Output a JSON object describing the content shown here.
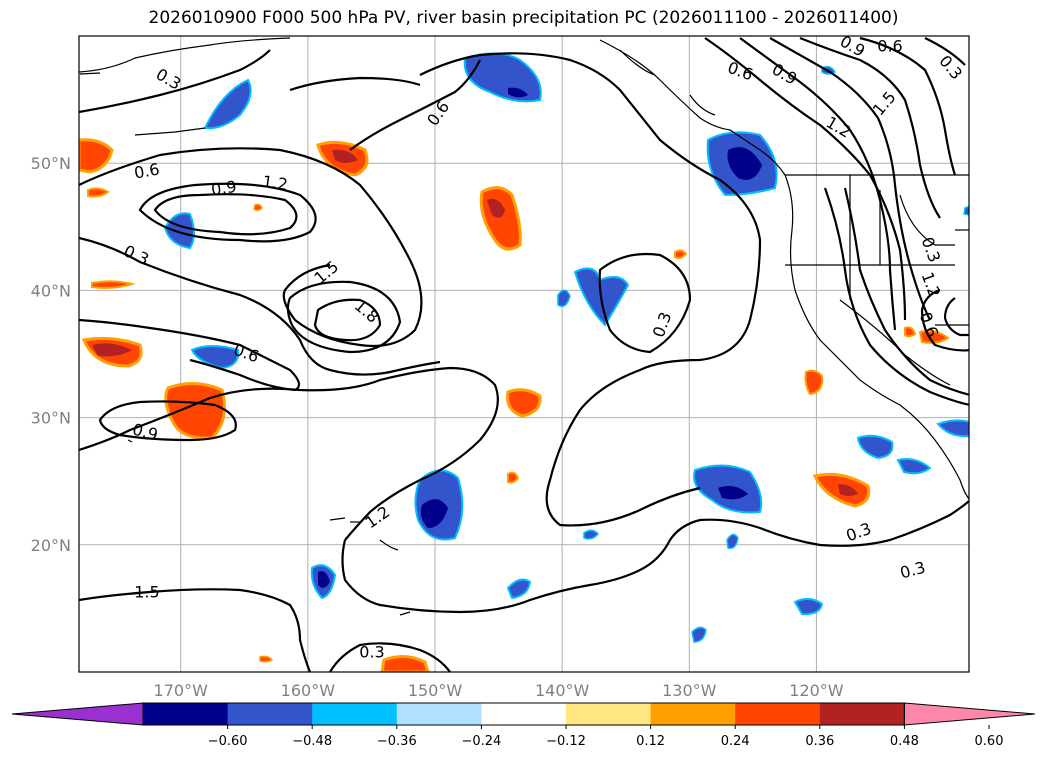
{
  "title": "2026010900 F000 500 hPa PV, river basin precipitation PC (2026011100 - 2026011400)",
  "map": {
    "lon_range": [
      -178,
      -108
    ],
    "lat_range": [
      10,
      60
    ],
    "lat_ticks": [
      {
        "value": 50,
        "label": "50°N"
      },
      {
        "value": 40,
        "label": "40°N"
      },
      {
        "value": 30,
        "label": "30°N"
      },
      {
        "value": 20,
        "label": "20°N"
      }
    ],
    "lon_ticks": [
      {
        "value": -170,
        "label": "170°W"
      },
      {
        "value": -160,
        "label": "160°W"
      },
      {
        "value": -150,
        "label": "150°W"
      },
      {
        "value": -140,
        "label": "140°W"
      },
      {
        "value": -130,
        "label": "130°W"
      },
      {
        "value": -120,
        "label": "120°W"
      }
    ],
    "gridlines": true
  },
  "contour_labels": [
    "0.3",
    "0.6",
    "0.9",
    "1.2",
    "1.5",
    "1.8",
    "0.3",
    "0.6",
    "0.9",
    "1.2",
    "1.5",
    "0.3",
    "0.3",
    "0.3",
    "0.3",
    "0.6",
    "0.6",
    "0.9",
    "1.2",
    "1.5",
    "0.9",
    "0.6",
    "0.3",
    "0.3",
    "1.2",
    "0.6"
  ],
  "colorbar": {
    "ticks": [
      "−0.60",
      "−0.48",
      "−0.36",
      "−0.24",
      "−0.12",
      "0.12",
      "0.24",
      "0.36",
      "0.48",
      "0.60"
    ],
    "colors": [
      "#9b30d0",
      "#00008b",
      "#3355cc",
      "#00bfff",
      "#b0e0ff",
      "#ffffff",
      "#ffe680",
      "#ffa000",
      "#ff4500",
      "#b22222",
      "#ff88aa"
    ]
  }
}
